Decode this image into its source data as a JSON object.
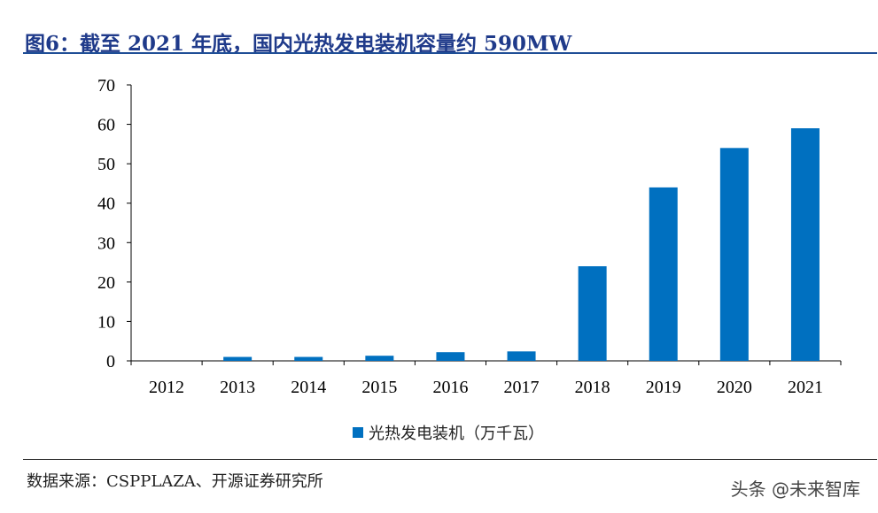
{
  "title": "图6：截至 2021 年底，国内光热发电装机容量约 590MW",
  "source": "数据来源：CSPPLAZA、开源证券研究所",
  "watermark": "头条 @未来智库",
  "colors": {
    "bar": "#0070c0",
    "title": "#1f3a8a"
  },
  "chart_data": {
    "type": "bar",
    "categories": [
      "2012",
      "2013",
      "2014",
      "2015",
      "2016",
      "2017",
      "2018",
      "2019",
      "2020",
      "2021"
    ],
    "series": [
      {
        "name": "光热发电装机（万千瓦）",
        "values": [
          0,
          1.0,
          1.0,
          1.3,
          2.2,
          2.4,
          24,
          44,
          54,
          59
        ]
      }
    ],
    "ylim": [
      0,
      70
    ],
    "yticks": [
      0,
      10,
      20,
      30,
      40,
      50,
      60,
      70
    ],
    "legend": "bottom-center",
    "grid": false
  }
}
